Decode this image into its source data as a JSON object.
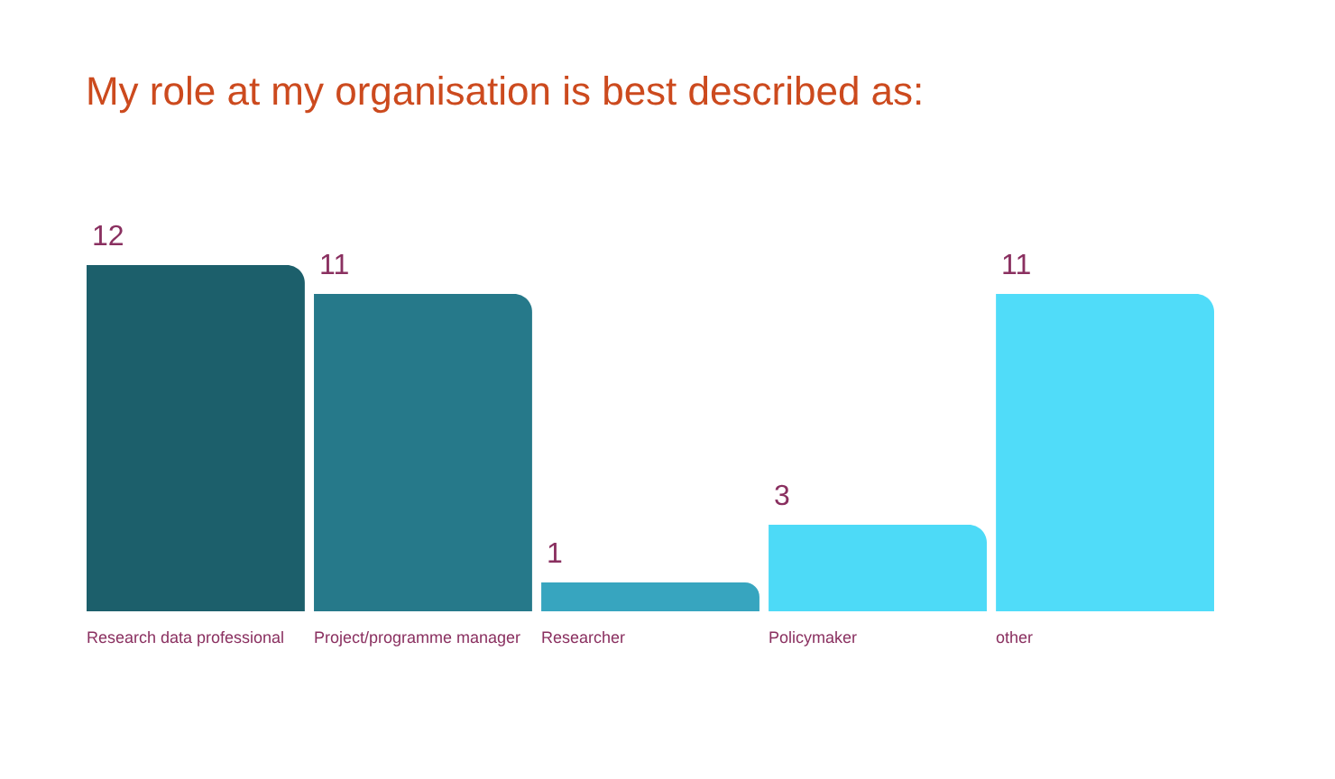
{
  "chart_data": {
    "type": "bar",
    "title": "My role at my organisation is best described as:",
    "categories": [
      "Research data professional",
      "Project/programme manager",
      "Researcher",
      "Policymaker",
      "other"
    ],
    "values": [
      12,
      11,
      1,
      3,
      11
    ],
    "colors": [
      "#1c5f6b",
      "#26798a",
      "#37a5bf",
      "#4ddaf7",
      "#50dcf9"
    ],
    "data_labels": true
  }
}
